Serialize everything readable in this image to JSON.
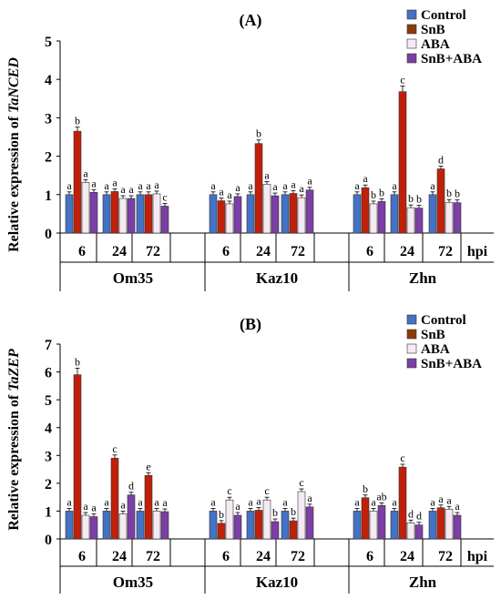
{
  "chart_data": [
    {
      "type": "bar",
      "title": "(A)",
      "ylabel_prefix": "Relative expression of ",
      "ylabel_gene": "TaNCED",
      "ylim": [
        0,
        5
      ],
      "yticks": [
        "0",
        "1",
        "2",
        "3",
        "4",
        "5"
      ],
      "unit_label": "hpi",
      "groups": [
        {
          "name": "Om35",
          "timepoints": [
            {
              "label": "6",
              "values": [
                1.0,
                2.65,
                1.32,
                1.06
              ],
              "letters": [
                "a",
                "b",
                "a",
                "a"
              ]
            },
            {
              "label": "24",
              "values": [
                1.0,
                1.08,
                0.9,
                0.9
              ],
              "letters": [
                "a",
                "a",
                "a",
                "a"
              ]
            },
            {
              "label": "72",
              "values": [
                1.0,
                1.0,
                1.02,
                0.7
              ],
              "letters": [
                "a",
                "a",
                "a",
                "c"
              ]
            }
          ]
        },
        {
          "name": "Kaz10",
          "timepoints": [
            {
              "label": "6",
              "values": [
                1.0,
                0.84,
                0.76,
                0.95
              ],
              "letters": [
                "a",
                "a",
                "a",
                "a"
              ]
            },
            {
              "label": "24",
              "values": [
                1.0,
                2.33,
                1.27,
                0.97
              ],
              "letters": [
                "a",
                "b",
                "a",
                "a"
              ]
            },
            {
              "label": "72",
              "values": [
                1.0,
                1.03,
                0.92,
                1.12
              ],
              "letters": [
                "a",
                "a",
                "a",
                "a"
              ]
            }
          ]
        },
        {
          "name": "Zhn",
          "timepoints": [
            {
              "label": "6",
              "values": [
                1.0,
                1.18,
                0.76,
                0.82
              ],
              "letters": [
                "a",
                "a",
                "b",
                "b"
              ]
            },
            {
              "label": "24",
              "values": [
                1.0,
                3.68,
                0.66,
                0.65
              ],
              "letters": [
                "a",
                "c",
                "b",
                "b"
              ]
            },
            {
              "label": "72",
              "values": [
                1.0,
                1.67,
                0.8,
                0.79
              ],
              "letters": [
                "a",
                "d",
                "b",
                "b"
              ]
            }
          ]
        }
      ],
      "legend": [
        "Control",
        "SnB",
        "ABA",
        "SnB+ABA"
      ],
      "legend_placement": "top-right"
    },
    {
      "type": "bar",
      "title": "(B)",
      "ylabel_prefix": "Relative expression of ",
      "ylabel_gene": "TaZEP",
      "ylim": [
        0,
        7
      ],
      "yticks": [
        "0",
        "1",
        "2",
        "3",
        "4",
        "5",
        "6",
        "7"
      ],
      "unit_label": "hpi",
      "groups": [
        {
          "name": "Om35",
          "timepoints": [
            {
              "label": "6",
              "values": [
                1.0,
                5.9,
                0.85,
                0.8
              ],
              "letters": [
                "a",
                "b",
                "a",
                "a"
              ]
            },
            {
              "label": "24",
              "values": [
                1.0,
                2.9,
                0.9,
                1.58
              ],
              "letters": [
                "a",
                "c",
                "a",
                "d"
              ]
            },
            {
              "label": "72",
              "values": [
                1.0,
                2.28,
                1.0,
                0.98
              ],
              "letters": [
                "a",
                "e",
                "a",
                "a"
              ]
            }
          ]
        },
        {
          "name": "Kaz10",
          "timepoints": [
            {
              "label": "6",
              "values": [
                1.0,
                0.56,
                1.4,
                0.85
              ],
              "letters": [
                "a",
                "b",
                "c",
                "a"
              ]
            },
            {
              "label": "24",
              "values": [
                1.0,
                1.03,
                1.4,
                0.62
              ],
              "letters": [
                "a",
                "a",
                "c",
                "b"
              ]
            },
            {
              "label": "72",
              "values": [
                1.0,
                0.65,
                1.7,
                1.15
              ],
              "letters": [
                "a",
                "b",
                "c",
                "a"
              ]
            }
          ]
        },
        {
          "name": "Zhn",
          "timepoints": [
            {
              "label": "6",
              "values": [
                1.0,
                1.48,
                1.0,
                1.2
              ],
              "letters": [
                "a",
                "b",
                "a",
                "ab"
              ]
            },
            {
              "label": "24",
              "values": [
                1.0,
                2.58,
                0.58,
                0.5
              ],
              "letters": [
                "a",
                "c",
                "d",
                "d"
              ]
            },
            {
              "label": "72",
              "values": [
                1.0,
                1.12,
                1.07,
                0.85
              ],
              "letters": [
                "a",
                "a",
                "a",
                "a"
              ]
            }
          ]
        }
      ],
      "legend": [
        "Control",
        "SnB",
        "ABA",
        "SnB+ABA"
      ],
      "legend_placement": "top-right"
    }
  ],
  "series_colors": [
    "#4472C4",
    "#C0200A",
    "#F5EAF3",
    "#7B3FA6"
  ],
  "legend_colors": [
    "#4472C4",
    "#8B3A0C",
    "#F5EAF3",
    "#7B3FA6"
  ]
}
